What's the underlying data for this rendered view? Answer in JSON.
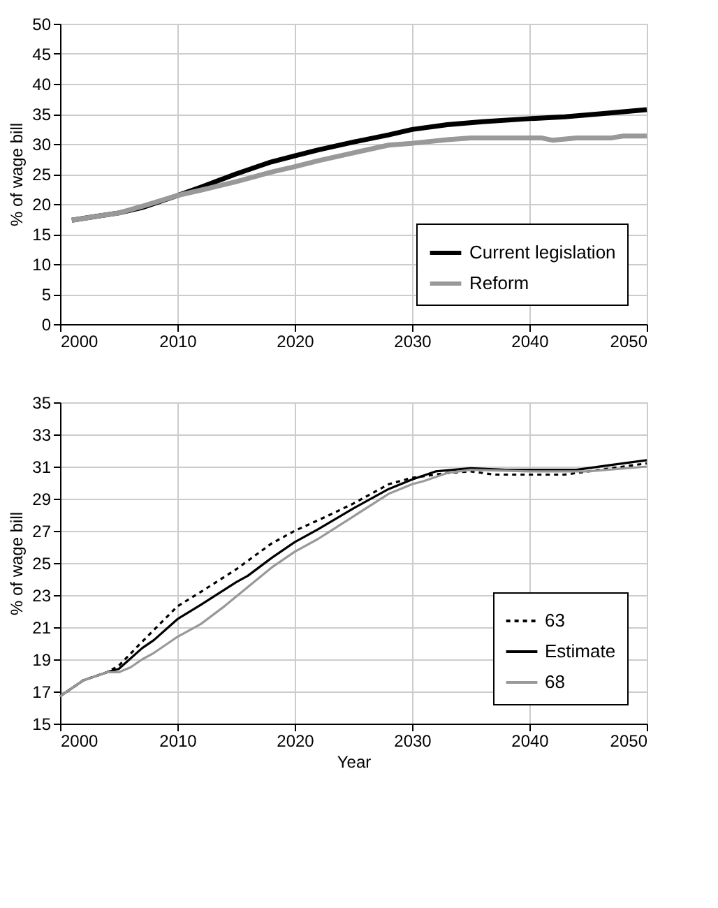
{
  "chart_data": [
    {
      "type": "line",
      "ylabel": "% of wage bill",
      "xlim": [
        2000,
        2050
      ],
      "xticks": [
        2000,
        2010,
        2020,
        2030,
        2040,
        2050
      ],
      "ylim": [
        0,
        50
      ],
      "yticks": [
        0,
        5,
        10,
        15,
        20,
        25,
        30,
        35,
        40,
        45,
        50
      ],
      "grid": true,
      "legend": "bottom right",
      "marker": "none",
      "series": [
        {
          "name": "Current legislation",
          "color": "#000000",
          "line_style": "solid",
          "x": [
            2001,
            2003,
            2005,
            2007,
            2010,
            2012,
            2015,
            2018,
            2020,
            2022,
            2025,
            2028,
            2030,
            2033,
            2036,
            2040,
            2043,
            2046,
            2050
          ],
          "values": [
            17.3,
            17.9,
            18.5,
            19.4,
            21.4,
            22.8,
            25.0,
            27.0,
            28.0,
            29.0,
            30.3,
            31.5,
            32.4,
            33.2,
            33.7,
            34.2,
            34.5,
            35.0,
            35.7
          ]
        },
        {
          "name": "Reform",
          "color": "#999999",
          "line_style": "solid",
          "x": [
            2001,
            2005,
            2007,
            2010,
            2012,
            2015,
            2018,
            2020,
            2022,
            2025,
            2028,
            2030,
            2033,
            2035,
            2041,
            2042,
            2044,
            2047,
            2048,
            2050
          ],
          "values": [
            17.3,
            18.5,
            19.6,
            21.4,
            22.3,
            23.7,
            25.3,
            26.2,
            27.2,
            28.5,
            29.8,
            30.1,
            30.7,
            31.0,
            31.0,
            30.6,
            31.0,
            31.0,
            31.3,
            31.3
          ]
        }
      ]
    },
    {
      "type": "line",
      "xlabel": "Year",
      "ylabel": "%  of wage bill",
      "xlim": [
        2000,
        2050
      ],
      "xticks": [
        2000,
        2010,
        2020,
        2030,
        2040,
        2050
      ],
      "ylim": [
        15,
        35
      ],
      "yticks": [
        15,
        17,
        19,
        21,
        23,
        25,
        27,
        29,
        31,
        33,
        35
      ],
      "grid": true,
      "legend": "bottom right",
      "marker": "none",
      "series": [
        {
          "name": "63",
          "color": "#000000",
          "line_style": "dotted",
          "x": [
            2000,
            2002,
            2004,
            2005,
            2007,
            2010,
            2012,
            2015,
            2018,
            2020,
            2023,
            2025,
            2028,
            2030,
            2033,
            2035,
            2037,
            2040,
            2043,
            2045,
            2050
          ],
          "values": [
            16.7,
            17.7,
            18.2,
            18.6,
            20.1,
            22.3,
            23.2,
            24.6,
            26.2,
            27.0,
            28.0,
            28.7,
            29.9,
            30.3,
            30.6,
            30.7,
            30.5,
            30.5,
            30.5,
            30.7,
            31.2
          ]
        },
        {
          "name": "Estimate",
          "color": "#000000",
          "line_style": "solid",
          "x": [
            2000,
            2002,
            2004,
            2005,
            2007,
            2008,
            2010,
            2012,
            2015,
            2016,
            2018,
            2020,
            2022,
            2025,
            2028,
            2030,
            2032,
            2035,
            2038,
            2042,
            2044,
            2047,
            2050
          ],
          "values": [
            16.7,
            17.7,
            18.2,
            18.4,
            19.7,
            20.2,
            21.5,
            22.4,
            23.8,
            24.2,
            25.3,
            26.3,
            27.1,
            28.4,
            29.6,
            30.2,
            30.7,
            30.9,
            30.8,
            30.8,
            30.8,
            31.1,
            31.4
          ]
        },
        {
          "name": "68",
          "color": "#999999",
          "line_style": "solid",
          "x": [
            2000,
            2002,
            2004,
            2005,
            2006,
            2007,
            2008,
            2010,
            2012,
            2014,
            2016,
            2018,
            2020,
            2022,
            2025,
            2028,
            2030,
            2031,
            2033,
            2035,
            2040,
            2045,
            2050
          ],
          "values": [
            16.7,
            17.7,
            18.2,
            18.2,
            18.5,
            19.0,
            19.4,
            20.4,
            21.2,
            22.3,
            23.5,
            24.7,
            25.7,
            26.5,
            27.9,
            29.3,
            29.9,
            30.1,
            30.6,
            30.8,
            30.7,
            30.7,
            31.0
          ]
        }
      ]
    }
  ]
}
